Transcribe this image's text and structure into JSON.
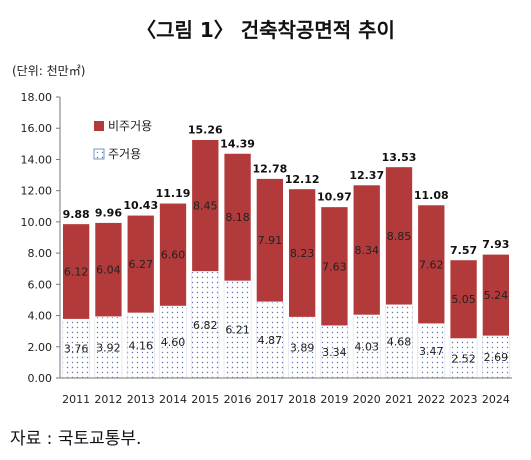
{
  "title": "〈그림 1〉 건축착공면적 추이",
  "unit_label": "(단위: 천만㎡)",
  "source": "자료 : 국토교통부.",
  "colors": {
    "non_residential": "#b23a3a",
    "residential_dot": "#5b78b5",
    "axis": "#777777"
  },
  "chart_data": {
    "type": "bar",
    "stacked": true,
    "categories": [
      "2011",
      "2012",
      "2013",
      "2014",
      "2015",
      "2016",
      "2017",
      "2018",
      "2019",
      "2020",
      "2021",
      "2022",
      "2023",
      "2024"
    ],
    "series": [
      {
        "name": "주거용",
        "values": [
          3.76,
          3.92,
          4.16,
          4.6,
          6.82,
          6.21,
          4.87,
          3.89,
          3.34,
          4.03,
          4.68,
          3.47,
          2.52,
          2.69
        ]
      },
      {
        "name": "비주거용",
        "values": [
          6.12,
          6.04,
          6.27,
          6.6,
          8.45,
          8.18,
          7.91,
          8.23,
          7.63,
          8.34,
          8.85,
          7.62,
          5.05,
          5.24
        ]
      }
    ],
    "totals": [
      9.88,
      9.96,
      10.43,
      11.19,
      15.26,
      14.39,
      12.78,
      12.12,
      10.97,
      12.37,
      13.53,
      11.08,
      7.57,
      7.93
    ],
    "ylim": [
      0,
      18
    ],
    "yticks": [
      "0.00",
      "2.00",
      "4.00",
      "6.00",
      "8.00",
      "10.00",
      "12.00",
      "14.00",
      "16.00",
      "18.00"
    ],
    "legend_position": "top-left"
  }
}
